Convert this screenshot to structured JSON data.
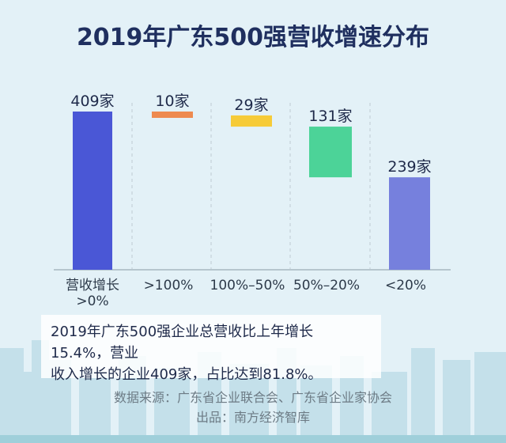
{
  "title": "2019年广东500强营收增速分布",
  "chart_data": {
    "type": "waterfall",
    "title": "2019年广东500强营收增速分布",
    "categories": [
      "营收增长\n>0%",
      ">100%",
      "100%–50%",
      "50%–20%",
      "<20%"
    ],
    "category_lines": [
      [
        "营收增长",
        ">0%"
      ],
      [
        ">100%"
      ],
      [
        "100%–50%"
      ],
      [
        "50%–20%"
      ],
      [
        "<20%"
      ]
    ],
    "values": [
      409,
      10,
      29,
      131,
      239
    ],
    "data_labels": [
      "409家",
      "10家",
      "29家",
      "131家",
      "239家"
    ],
    "kinds": [
      "total",
      "step",
      "step",
      "step",
      "total"
    ],
    "colors": [
      "#4a57d6",
      "#ee8a4f",
      "#f6cb38",
      "#4cd398",
      "#7680dd"
    ],
    "ylim": [
      0,
      409
    ],
    "grid": "vertical dashed separators"
  },
  "note": {
    "line1": "2019年广东500强企业总营收比上年增长15.4%，营业",
    "line2": "收入增长的企业409家，占比达到81.8%。"
  },
  "footer": {
    "source": "数据来源：广东省企业联合会、广东省企业家协会",
    "producer": "出品：南方经济智库"
  }
}
